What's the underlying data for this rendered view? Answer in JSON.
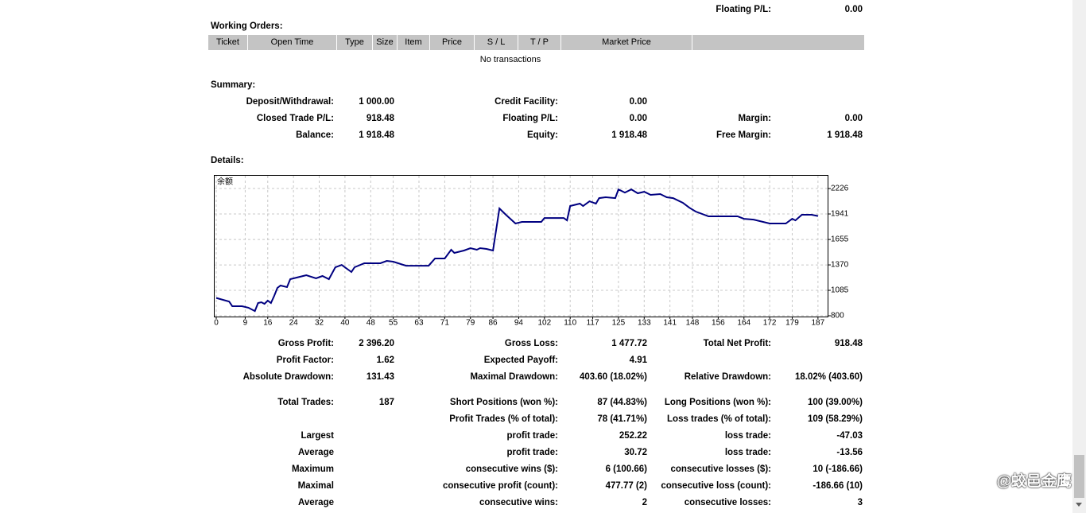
{
  "header": {
    "label": "Floating P/L:",
    "value": "0.00"
  },
  "working_orders": {
    "title": "Working Orders:",
    "columns": [
      "Ticket",
      "Open Time",
      "Type",
      "Size",
      "Item",
      "Price",
      "S / L",
      "T / P",
      "Market Price"
    ],
    "empty": "No transactions"
  },
  "summary": {
    "title": "Summary:",
    "rows": [
      [
        "Deposit/Withdrawal:",
        "1 000.00",
        "Credit Facility:",
        "0.00",
        null,
        null
      ],
      [
        "Closed Trade P/L:",
        "918.48",
        "Floating P/L:",
        "0.00",
        "Margin:",
        "0.00"
      ],
      [
        "Balance:",
        "1 918.48",
        "Equity:",
        "1 918.48",
        "Free Margin:",
        "1 918.48"
      ]
    ]
  },
  "details": {
    "title": "Details:",
    "rows": [
      [
        "Gross Profit:",
        "2 396.20",
        "Gross Loss:",
        "1 477.72",
        "Total Net Profit:",
        "918.48"
      ],
      [
        "Profit Factor:",
        "1.62",
        "Expected Payoff:",
        "4.91",
        null,
        null
      ],
      [
        "Absolute Drawdown:",
        "131.43",
        "Maximal Drawdown:",
        "403.60 (18.02%)",
        "Relative Drawdown:",
        "18.02% (403.60)"
      ],
      [
        "Total Trades:",
        "187",
        "Short Positions (won %):",
        "87 (44.83%)",
        "Long Positions (won %):",
        "100 (39.00%)"
      ],
      [
        null,
        null,
        "Profit Trades (% of total):",
        "78 (41.71%)",
        "Loss trades (% of total):",
        "109 (58.29%)"
      ],
      [
        "Largest",
        null,
        "profit trade:",
        "252.22",
        "loss trade:",
        "-47.03"
      ],
      [
        "Average",
        null,
        "profit trade:",
        "30.72",
        "loss trade:",
        "-13.56"
      ],
      [
        "Maximum",
        null,
        "consecutive wins ($):",
        "6 (100.66)",
        "consecutive losses ($):",
        "10 (-186.66)"
      ],
      [
        "Maximal",
        null,
        "consecutive profit (count):",
        "477.77 (2)",
        "consecutive loss (count):",
        "-186.66 (10)"
      ],
      [
        "Average",
        null,
        "consecutive wins:",
        "2",
        "consecutive losses:",
        "3"
      ]
    ]
  },
  "watermark": "@蛟邑金鹰",
  "chart_data": {
    "type": "line",
    "x": [
      0,
      4,
      5,
      8,
      10,
      12,
      13,
      14,
      15,
      16,
      17,
      18,
      19,
      20,
      22,
      23,
      25,
      28,
      31,
      33,
      35,
      37,
      39,
      42,
      43,
      46,
      51,
      53,
      55,
      59,
      66,
      68,
      71,
      73,
      74,
      77,
      79,
      81,
      82,
      84,
      86,
      88,
      90,
      93,
      95,
      101,
      102,
      108,
      109,
      110,
      113,
      114,
      116,
      118,
      119,
      121,
      124,
      125,
      127,
      129,
      131,
      133,
      135,
      138,
      140,
      142,
      145,
      147,
      149,
      153,
      157,
      162,
      164,
      167,
      172,
      177,
      179,
      180,
      182,
      185,
      187
    ],
    "series": [
      {
        "name": "余额",
        "color": "#000080",
        "values": [
          1000,
          960,
          907,
          907,
          890,
          853,
          943,
          952,
          934,
          969,
          943,
          1023,
          1112,
          1139,
          1121,
          1210,
          1228,
          1255,
          1219,
          1246,
          1210,
          1344,
          1370,
          1290,
          1344,
          1388,
          1388,
          1415,
          1406,
          1361,
          1361,
          1442,
          1442,
          1540,
          1504,
          1531,
          1558,
          1540,
          1558,
          1549,
          1531,
          2003,
          1932,
          1834,
          1852,
          1852,
          1896,
          1896,
          1869,
          2030,
          2057,
          2030,
          2083,
          2057,
          2119,
          2128,
          2119,
          2217,
          2181,
          2217,
          2173,
          2190,
          2155,
          2164,
          2128,
          2119,
          2066,
          2012,
          1968,
          1914,
          1914,
          1914,
          1887,
          1878,
          1834,
          1834,
          1887,
          1869,
          1932,
          1932,
          1918
        ]
      }
    ],
    "xlim": [
      0,
      190
    ],
    "xticks": [
      0,
      9,
      16,
      24,
      32,
      40,
      48,
      55,
      63,
      71,
      79,
      86,
      94,
      102,
      110,
      117,
      125,
      133,
      141,
      148,
      156,
      164,
      172,
      179,
      187
    ],
    "ylim": [
      800,
      2378
    ],
    "yticks": [
      800,
      1085,
      1370,
      1655,
      1941,
      2226
    ],
    "grid": true
  }
}
